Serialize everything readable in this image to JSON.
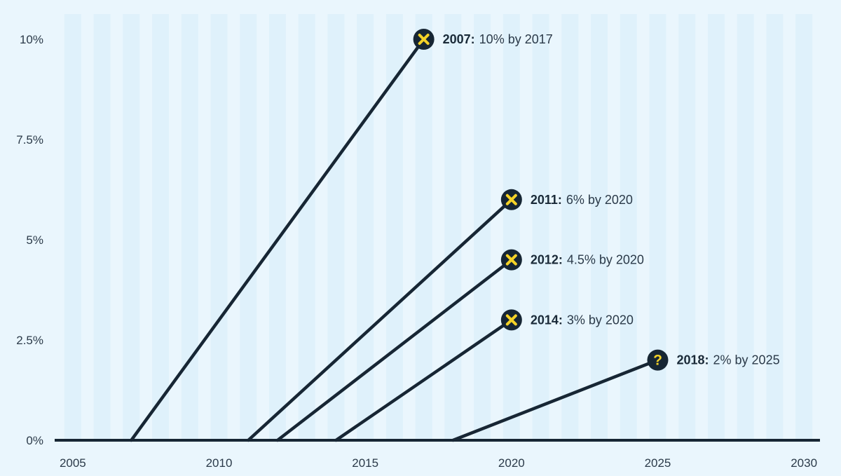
{
  "colors": {
    "background": "#eaf6fd",
    "stripe": "#dff1fb",
    "line": "#172634",
    "marker_fill": "#172634",
    "marker_symbol": "#f5d327",
    "text": "#2b3a49"
  },
  "chart_data": {
    "type": "line",
    "title": "",
    "xlabel": "",
    "ylabel": "",
    "xlim": [
      2004.5,
      2030.5
    ],
    "ylim": [
      0,
      10.7
    ],
    "x_ticks": [
      2005,
      2010,
      2015,
      2020,
      2025,
      2030
    ],
    "x_tick_labels": [
      "2005",
      "2010",
      "2015",
      "2020",
      "2025",
      "2030"
    ],
    "y_ticks": [
      0,
      2.5,
      5,
      7.5,
      10
    ],
    "y_tick_labels": [
      "0%",
      "2.5%",
      "5%",
      "7.5%",
      "10%"
    ],
    "grid": "vertical stripes per year",
    "series": [
      {
        "start": [
          2007,
          0
        ],
        "end": [
          2017,
          10
        ],
        "marker": "x",
        "label_year": "2007:",
        "label_text": "10% by 2017"
      },
      {
        "start": [
          2011,
          0
        ],
        "end": [
          2020,
          6
        ],
        "marker": "x",
        "label_year": "2011:",
        "label_text": "6% by 2020"
      },
      {
        "start": [
          2012,
          0
        ],
        "end": [
          2020,
          4.5
        ],
        "marker": "x",
        "label_year": "2012:",
        "label_text": "4.5% by 2020"
      },
      {
        "start": [
          2014,
          0
        ],
        "end": [
          2020,
          3
        ],
        "marker": "x",
        "label_year": "2014:",
        "label_text": "3% by 2020"
      },
      {
        "start": [
          2018,
          0
        ],
        "end": [
          2025,
          2
        ],
        "marker": "?",
        "label_year": "2018:",
        "label_text": "2% by 2025"
      }
    ]
  }
}
